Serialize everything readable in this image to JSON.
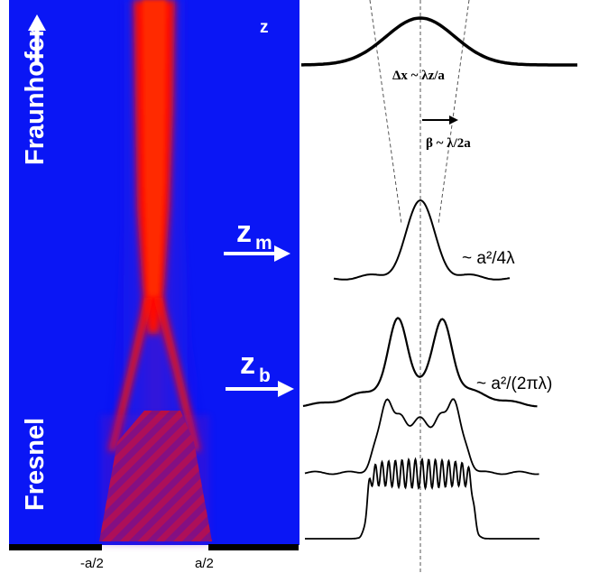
{
  "regions": {
    "far_field": "Fraunhofer",
    "near_field": "Fresnel"
  },
  "axis": {
    "z": "z",
    "left_edge": "-a/2",
    "right_edge": "a/2"
  },
  "markers": {
    "zm": {
      "main": "z",
      "sub": "m"
    },
    "zb": {
      "main": "z",
      "sub": "b"
    }
  },
  "formulas": {
    "spot_width": "Δx ~ λz/a",
    "divergence": "β ~ λ/2a",
    "zm_value": "~ a²/4λ",
    "zb_value": "~ a²/(2πλ)"
  },
  "colors": {
    "background": "#0a16f5",
    "beam": "#ff0000",
    "text_on_map": "#ffffff",
    "curve": "#000000"
  },
  "icons": {
    "direction": "up-arrow-icon",
    "plane_pointer": "right-arrow-icon"
  }
}
